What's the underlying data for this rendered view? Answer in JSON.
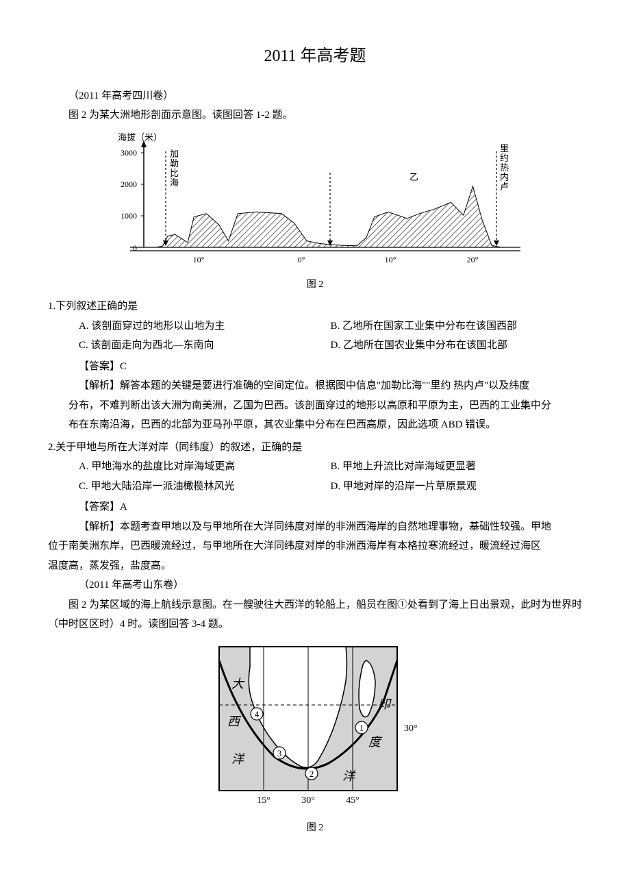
{
  "title": "2011 年高考题",
  "source_a": "（2011 年高考四川卷）",
  "intro_a": "图 2 为某大洲地形剖面示意图。读图回答 1-2 题。",
  "chart1": {
    "y_label": "海拔（米）",
    "y_ticks": [
      0,
      1000,
      2000,
      3000
    ],
    "x_ticks": [
      "10°",
      "0°",
      "10°",
      "20°"
    ],
    "marker_left": "加勒比海",
    "marker_mid": "乙",
    "marker_right": "里约热内卢",
    "profile_points": [
      [
        0,
        0
      ],
      [
        20,
        0
      ],
      [
        30,
        40
      ],
      [
        38,
        350
      ],
      [
        50,
        400
      ],
      [
        58,
        300
      ],
      [
        70,
        150
      ],
      [
        80,
        950
      ],
      [
        100,
        1050
      ],
      [
        120,
        700
      ],
      [
        135,
        200
      ],
      [
        150,
        1050
      ],
      [
        180,
        1100
      ],
      [
        220,
        1050
      ],
      [
        240,
        750
      ],
      [
        260,
        200
      ],
      [
        280,
        120
      ],
      [
        300,
        80
      ],
      [
        320,
        60
      ],
      [
        340,
        50
      ],
      [
        355,
        300
      ],
      [
        368,
        950
      ],
      [
        390,
        1100
      ],
      [
        420,
        900
      ],
      [
        440,
        1050
      ],
      [
        465,
        1200
      ],
      [
        490,
        1400
      ],
      [
        510,
        1000
      ],
      [
        525,
        1900
      ],
      [
        540,
        850
      ],
      [
        555,
        60
      ],
      [
        570,
        0
      ],
      [
        590,
        0
      ]
    ],
    "x_range": 590,
    "y_max": 3200,
    "colors": {
      "bg": "#ffffff",
      "axis": "#000000",
      "hatched_fill": "#ffffff",
      "hatched_stroke": "#000000"
    },
    "caption": "图 2"
  },
  "q1": {
    "stem": "1.下列叙述正确的是",
    "A": "A. 该剖面穿过的地形以山地为主",
    "B": "B. 乙地所在国家工业集中分布在该国西部",
    "C": "C. 该剖面走向为西北—东南向",
    "D": "D. 乙地所在国农业集中分布在该国北部",
    "answer": "【答案】C",
    "explain1": "【解析】解答本题的关键是要进行准确的空间定位。根据图中信息\"加勒比海\"\"里约    热内卢\"以及纬度",
    "explain2": "分布，不难判断出该大洲为南美洲，乙国为巴西。该剖面穿过的地形以高原和平原为主，巴西的工业集中分",
    "explain3": "布在东南沿海，巴西的北部为亚马孙平原，其农业集中分布在巴西高原，因此选项 ABD 错误。"
  },
  "q2": {
    "stem": "2.关于甲地与所在大洋对岸（同纬度）的叙述，正确的是",
    "A": "A. 甲地海水的盐度比对岸海域更高",
    "B": "B. 甲地上升流比对岸海域更显著",
    "C": "C. 甲地大陆沿岸一派油橄榄林风光",
    "D": "D. 甲地对岸的沿岸一片草原景观",
    "answer": "【答案】A",
    "explain1": "【解析】本题考查甲地以及与甲地所在大洋同纬度对岸的非洲西海岸的自然地理事物，基础性较强。甲地",
    "explain2": "位于南美洲东岸，巴西暖流经过，与甲地所在大洋同纬度对岸的非洲西海岸有本格拉寒流经过，暖流经过海区",
    "explain3": "温度高，蒸发强，盐度高。"
  },
  "source_b": "（2011 年高考山东卷）",
  "intro_b": "图 2 为某区域的海上航线示意图。在一艘驶往大西洋的轮船上，船员在图①处看到了海上日出景观，此时为世界时（中时区区时）4 时。读图回答 3-4 题。",
  "map": {
    "labels": {
      "atlantic1": "大",
      "atlantic2": "西",
      "atlantic3": "洋",
      "indian1": "印",
      "indian2": "度",
      "indian3": "洋"
    },
    "points": [
      "①",
      "②",
      "③",
      "④"
    ],
    "lat_label": "30°",
    "lon_labels": [
      "15°",
      "30°",
      "45°"
    ],
    "caption": "图 2",
    "colors": {
      "land": "#ffffff",
      "sea": "#d3d3d3",
      "stroke": "#000000"
    }
  }
}
